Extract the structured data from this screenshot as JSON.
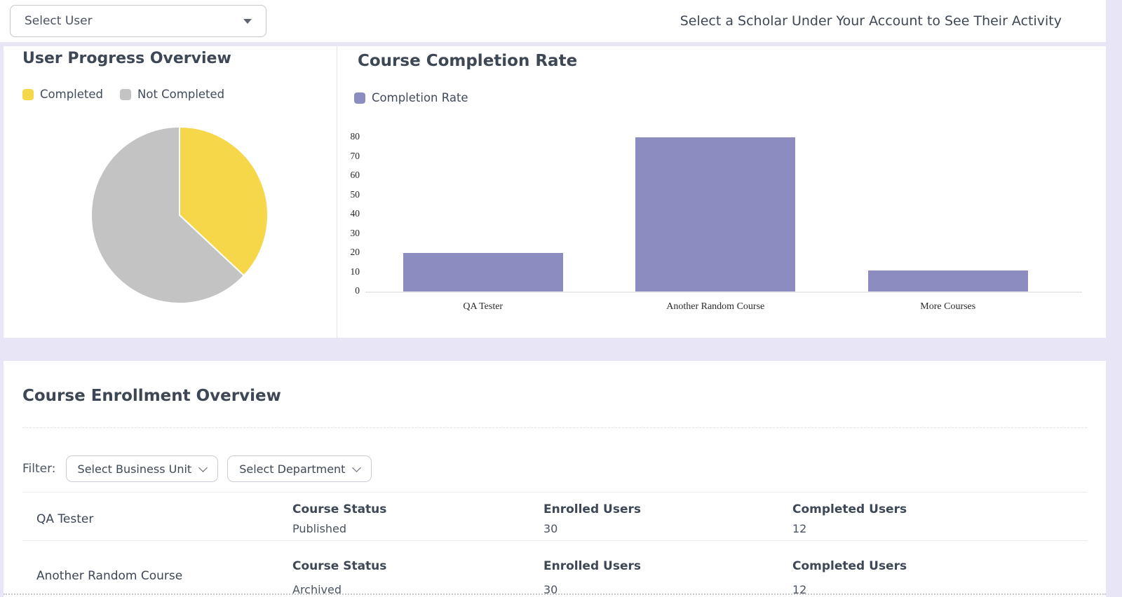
{
  "header": {
    "user_select": {
      "value": "Select User"
    },
    "hint": "Select a Scholar Under Your Account to See Their Activity"
  },
  "pie_panel": {
    "title": "User Progress Overview",
    "legend": [
      {
        "label": "Completed",
        "color": "#f6d74a"
      },
      {
        "label": "Not Completed",
        "color": "#c3c3c3"
      }
    ]
  },
  "bar_panel": {
    "title": "Course Completion Rate",
    "legend": [
      {
        "label": "Completion Rate",
        "color": "#8d8cc0"
      }
    ]
  },
  "chart_data": [
    {
      "type": "pie",
      "title": "User Progress Overview",
      "labels": [
        "Completed",
        "Not Completed"
      ],
      "values": [
        37,
        63
      ],
      "colors": [
        "#f6d74a",
        "#c3c3c3"
      ],
      "legend_position": "top"
    },
    {
      "type": "bar",
      "title": "Course Completion Rate",
      "series_name": "Completion Rate",
      "categories": [
        "QA Tester",
        "Another Random Course",
        "More Courses"
      ],
      "values": [
        20,
        80,
        11
      ],
      "color": "#8d8cc0",
      "ylim": [
        0,
        80
      ],
      "yticks": [
        0,
        10,
        20,
        30,
        40,
        50,
        60,
        70,
        80
      ],
      "grid": false,
      "legend_position": "top"
    }
  ],
  "enrollment": {
    "title": "Course Enrollment Overview",
    "filter_label": "Filter:",
    "business_unit_select": "Select Business Unit",
    "department_select": "Select Department",
    "rows": [
      {
        "name": "QA Tester",
        "status_label": "Course Status",
        "status": "Published",
        "enrolled_label": "Enrolled Users",
        "enrolled": "30",
        "completed_label": "Completed Users",
        "completed": "12"
      },
      {
        "name": "Another Random Course",
        "status_label": "Course Status",
        "status": "Archived",
        "enrolled_label": "Enrolled Users",
        "enrolled": "30",
        "completed_label": "Completed Users",
        "completed": "12"
      }
    ]
  },
  "colors": {
    "background": "#e7e5f6",
    "card": "#ffffff",
    "heading": "#3d4756",
    "bar_purple": "#8d8cc0",
    "pie_yellow": "#f6d74a",
    "pie_gray": "#c3c3c3"
  }
}
